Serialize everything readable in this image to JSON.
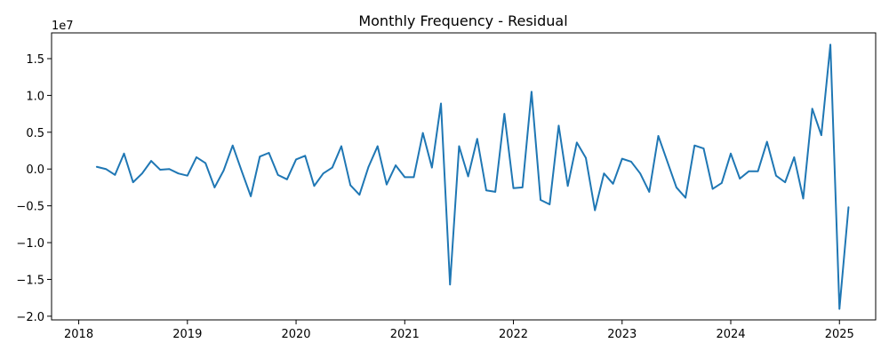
{
  "chart_data": {
    "type": "line",
    "title": "Monthly Frequency - Residual",
    "xlabel": "",
    "ylabel": "",
    "y_offset_label": "1e7",
    "y_scale": 10000000,
    "xlim": [
      "2017-10",
      "2025-05"
    ],
    "ylim": [
      -2.05,
      1.85
    ],
    "grid": false,
    "x_ticks": [
      "2018",
      "2019",
      "2020",
      "2021",
      "2022",
      "2023",
      "2024",
      "2025"
    ],
    "y_ticks": [
      "1.5",
      "1.0",
      "0.5",
      "0.0",
      "−0.5",
      "−1.0",
      "−1.5",
      "−2.0"
    ],
    "y_tick_values": [
      1.5,
      1.0,
      0.5,
      0.0,
      -0.5,
      -1.0,
      -1.5,
      -2.0
    ],
    "line_color": "#1f77b4",
    "series": [
      {
        "x": [
          "2018-03",
          "2018-04",
          "2018-05",
          "2018-06",
          "2018-07",
          "2018-08",
          "2018-09",
          "2018-10",
          "2018-11",
          "2018-12",
          "2019-01",
          "2019-02",
          "2019-03",
          "2019-04",
          "2019-05",
          "2019-06",
          "2019-07",
          "2019-08",
          "2019-09",
          "2019-10",
          "2019-11",
          "2019-12",
          "2020-01",
          "2020-02",
          "2020-03",
          "2020-04",
          "2020-05",
          "2020-06",
          "2020-07",
          "2020-08",
          "2020-09",
          "2020-10",
          "2020-11",
          "2020-12",
          "2021-01",
          "2021-02",
          "2021-03",
          "2021-04",
          "2021-05",
          "2021-06",
          "2021-07",
          "2021-08",
          "2021-09",
          "2021-10",
          "2021-11",
          "2021-12",
          "2022-01",
          "2022-02",
          "2022-03",
          "2022-04",
          "2022-05",
          "2022-06",
          "2022-07",
          "2022-08",
          "2022-09",
          "2022-10",
          "2022-11",
          "2022-12",
          "2023-01",
          "2023-02",
          "2023-03",
          "2023-04",
          "2023-05",
          "2023-06",
          "2023-07",
          "2023-08",
          "2023-09",
          "2023-10",
          "2023-11",
          "2023-12",
          "2024-01",
          "2024-02",
          "2024-03",
          "2024-04",
          "2024-05",
          "2024-06",
          "2024-07",
          "2024-08",
          "2024-09",
          "2024-10",
          "2024-11",
          "2024-12",
          "2025-01",
          "2025-02"
        ],
        "y": [
          0.03,
          0.0,
          -0.08,
          0.21,
          -0.18,
          -0.06,
          0.11,
          -0.01,
          0.0,
          -0.06,
          -0.09,
          0.16,
          0.08,
          -0.25,
          -0.02,
          0.32,
          -0.03,
          -0.37,
          0.17,
          0.22,
          -0.08,
          -0.14,
          0.13,
          0.18,
          -0.23,
          -0.06,
          0.02,
          0.31,
          -0.22,
          -0.35,
          0.03,
          0.31,
          -0.21,
          0.05,
          -0.11,
          -0.11,
          0.49,
          0.02,
          0.89,
          -1.57,
          0.31,
          -0.1,
          0.41,
          -0.29,
          -0.31,
          0.75,
          -0.26,
          -0.25,
          1.05,
          -0.42,
          -0.48,
          0.59,
          -0.23,
          0.36,
          0.15,
          -0.56,
          -0.06,
          -0.2,
          0.14,
          0.1,
          -0.06,
          -0.31,
          0.45,
          0.1,
          -0.25,
          -0.39,
          0.32,
          0.28,
          -0.27,
          -0.19,
          0.21,
          -0.13,
          -0.03,
          -0.03,
          0.37,
          -0.09,
          -0.18,
          0.16,
          -0.4,
          0.82,
          0.46,
          1.69,
          -1.9,
          -0.52
        ]
      }
    ]
  }
}
